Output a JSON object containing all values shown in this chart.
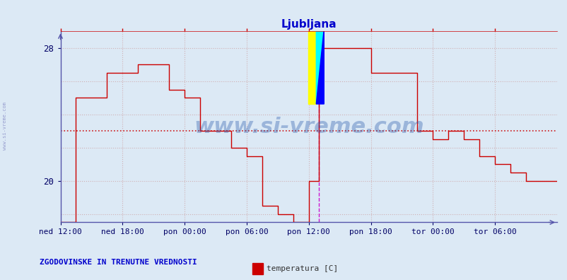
{
  "title": "Ljubljana",
  "title_color": "#0000cc",
  "bg_color": "#dce9f5",
  "plot_bg_color": "#dce9f5",
  "line_color": "#cc0000",
  "grid_color": "#cc9999",
  "axis_color": "#5555aa",
  "xlabel_color": "#000066",
  "ylabel_color": "#000066",
  "watermark_text": "www.si-vreme.com",
  "watermark_color": "#2255aa",
  "legend_text": "temperatura [C]",
  "legend_box_color": "#cc0000",
  "bottom_label": "ZGODOVINSKE IN TRENUTNE VREDNOSTI",
  "bottom_label_color": "#0000cc",
  "ylim": [
    17.5,
    29.0
  ],
  "yticks": [
    20,
    28
  ],
  "xlim": [
    0,
    576
  ],
  "xtick_positions": [
    0,
    72,
    144,
    216,
    288,
    360,
    432,
    504
  ],
  "xtick_labels": [
    "ned 12:00",
    "ned 18:00",
    "pon 00:00",
    "pon 06:00",
    "pon 12:00",
    "pon 18:00",
    "tor 00:00",
    "tor 06:00"
  ],
  "avg_line_y": 23.0,
  "avg_line_color": "#cc0000",
  "vertical_line_x": 300,
  "vertical_line_color": "#cc00cc",
  "temp_data_x": [
    0,
    18,
    18,
    54,
    54,
    90,
    90,
    126,
    126,
    144,
    144,
    162,
    162,
    198,
    198,
    216,
    216,
    234,
    234,
    252,
    252,
    270,
    270,
    288,
    288,
    300,
    300,
    306,
    306,
    360,
    360,
    414,
    414,
    432,
    432,
    450,
    450,
    468,
    468,
    486,
    486,
    504,
    504,
    522,
    522,
    540,
    540,
    576
  ],
  "temp_data_y": [
    17.5,
    17.5,
    25.0,
    25.0,
    26.5,
    26.5,
    27.0,
    27.0,
    25.5,
    25.5,
    25.0,
    25.0,
    23.0,
    23.0,
    22.0,
    22.0,
    21.5,
    21.5,
    18.5,
    18.5,
    18.0,
    18.0,
    17.5,
    17.5,
    20.0,
    20.0,
    28.0,
    28.0,
    28.0,
    28.0,
    26.5,
    26.5,
    23.0,
    23.0,
    22.5,
    22.5,
    23.0,
    23.0,
    22.5,
    22.5,
    21.5,
    21.5,
    21.0,
    21.0,
    20.5,
    20.5,
    20.0,
    20.0
  ]
}
